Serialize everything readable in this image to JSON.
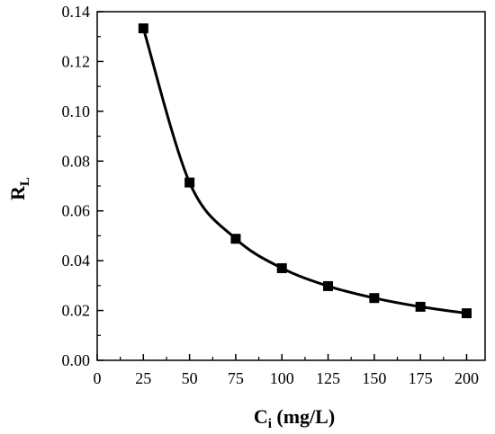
{
  "chart_data": {
    "type": "line",
    "x": [
      25,
      50,
      75,
      100,
      125,
      150,
      175,
      200
    ],
    "y": [
      0.1333,
      0.0714,
      0.0488,
      0.037,
      0.0298,
      0.025,
      0.0215,
      0.0189
    ],
    "xlabel_main": "C",
    "xlabel_sub": "i",
    "xlabel_units": " (mg/L)",
    "ylabel_main": "R",
    "ylabel_sub": "L",
    "xlim": [
      0,
      210
    ],
    "ylim": [
      0,
      0.14
    ],
    "xticks": [
      0,
      25,
      50,
      75,
      100,
      125,
      150,
      175,
      200
    ],
    "xtick_labels": [
      "0",
      "25",
      "50",
      "75",
      "100",
      "125",
      "150",
      "175",
      "200"
    ],
    "yticks": [
      0.0,
      0.02,
      0.04,
      0.06,
      0.08,
      0.1,
      0.12,
      0.14
    ],
    "ytick_labels": [
      "0.00",
      "0.02",
      "0.04",
      "0.06",
      "0.08",
      "0.10",
      "0.12",
      "0.14"
    ],
    "marker": "square",
    "line_color": "#000000",
    "grid": false,
    "legend": "none"
  }
}
